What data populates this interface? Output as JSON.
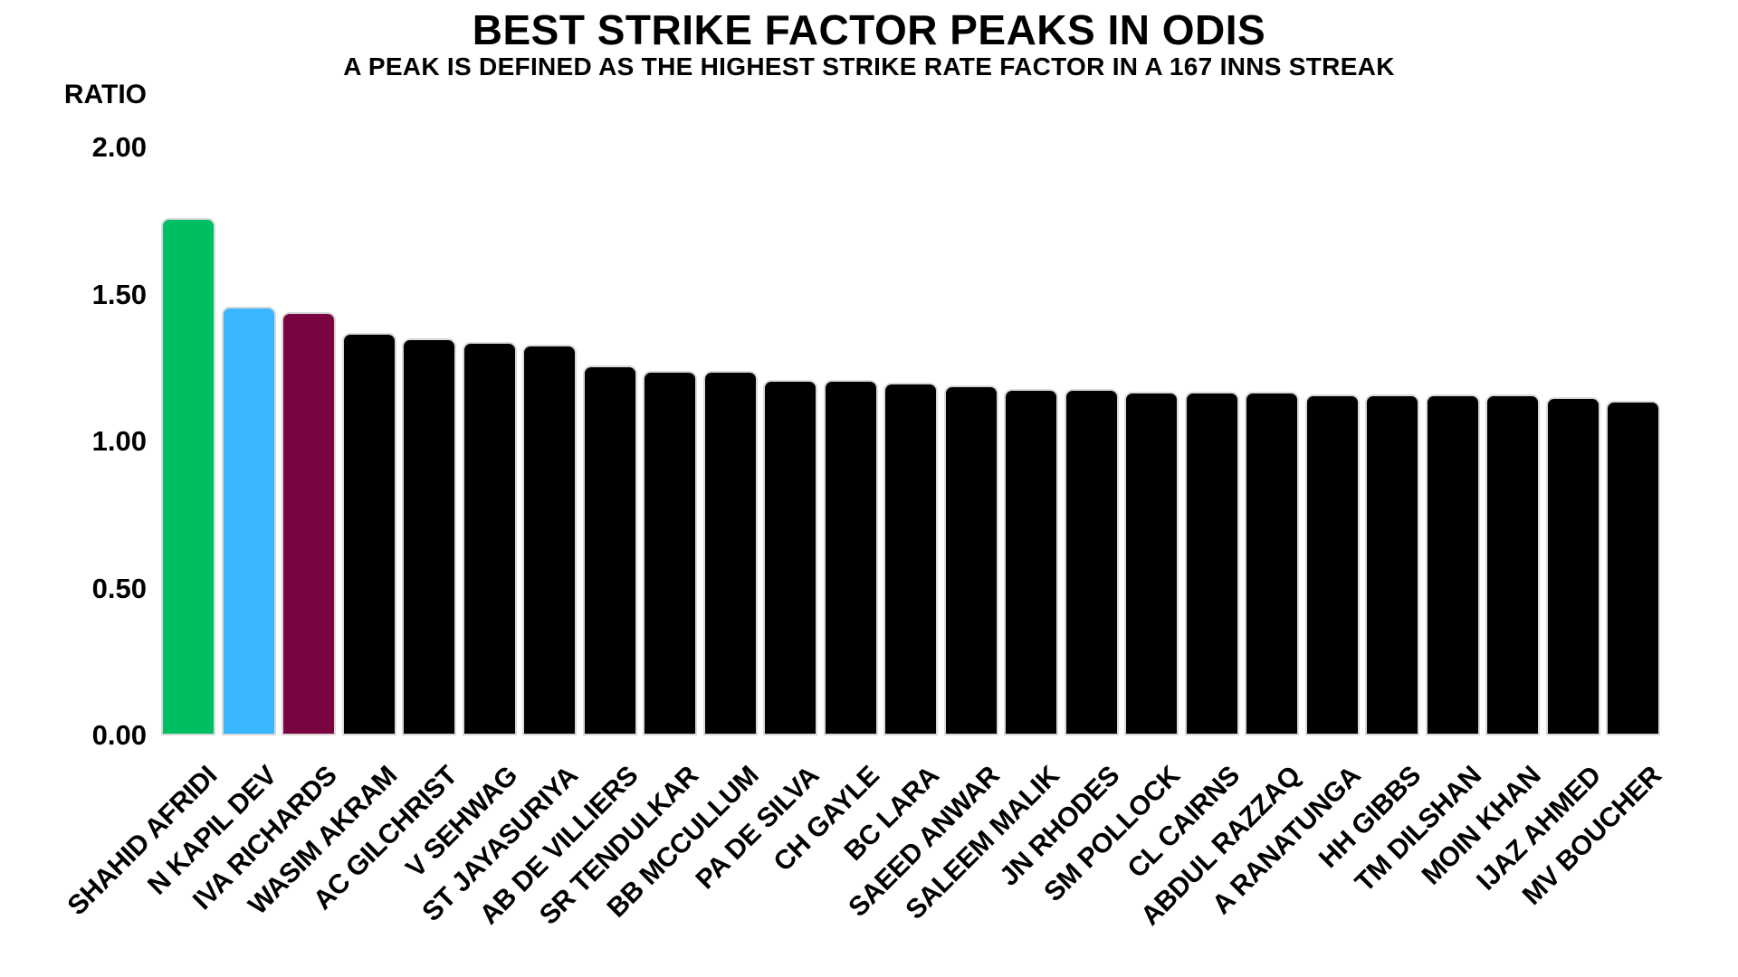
{
  "chart_data": {
    "type": "bar",
    "title": "BEST STRIKE FACTOR PEAKS IN ODIS",
    "subtitle": "A PEAK IS DEFINED AS THE HIGHEST STRIKE RATE FACTOR IN A 167 INNS STREAK",
    "ylabel": "RATIO",
    "xlabel": "",
    "ylim": [
      0,
      2.0
    ],
    "grid": false,
    "legend": "none",
    "yticks": [
      {
        "value": 0.0,
        "label": "0.00"
      },
      {
        "value": 0.5,
        "label": "0.50"
      },
      {
        "value": 1.0,
        "label": "1.00"
      },
      {
        "value": 1.5,
        "label": "1.50"
      },
      {
        "value": 2.0,
        "label": "2.00"
      }
    ],
    "categories": [
      "SHAHID AFRIDI",
      "N KAPIL DEV",
      "IVA RICHARDS",
      "WASIM AKRAM",
      "AC GILCHRIST",
      "V SEHWAG",
      "ST JAYASURIYA",
      "AB DE VILLIERS",
      "SR TENDULKAR",
      "BB MCCULLUM",
      "PA DE SILVA",
      "CH GAYLE",
      "BC LARA",
      "SAEED ANWAR",
      "SALEEM MALIK",
      "JN RHODES",
      "SM POLLOCK",
      "CL CAIRNS",
      "ABDUL RAZZAQ",
      "A RANATUNGA",
      "HH GIBBS",
      "TM DILSHAN",
      "MOIN KHAN",
      "IJAZ AHMED",
      "MV BOUCHER"
    ],
    "values": [
      1.76,
      1.46,
      1.44,
      1.37,
      1.35,
      1.34,
      1.33,
      1.26,
      1.24,
      1.24,
      1.21,
      1.21,
      1.2,
      1.19,
      1.18,
      1.18,
      1.17,
      1.17,
      1.17,
      1.16,
      1.16,
      1.16,
      1.16,
      1.15,
      1.14
    ],
    "bar_colors": [
      "#00BF63",
      "#38B6FF",
      "#7A0440",
      "#000000",
      "#000000",
      "#000000",
      "#000000",
      "#000000",
      "#000000",
      "#000000",
      "#000000",
      "#000000",
      "#000000",
      "#000000",
      "#000000",
      "#000000",
      "#000000",
      "#000000",
      "#000000",
      "#000000",
      "#000000",
      "#000000",
      "#000000",
      "#000000",
      "#000000"
    ],
    "colors": {
      "highlight_green": "#00BF63",
      "highlight_blue": "#38B6FF",
      "highlight_maroon": "#7A0440",
      "bar_default": "#000000",
      "bar_edge": "#D9D9D9",
      "background": "#FFFFFF",
      "text": "#000000"
    }
  }
}
